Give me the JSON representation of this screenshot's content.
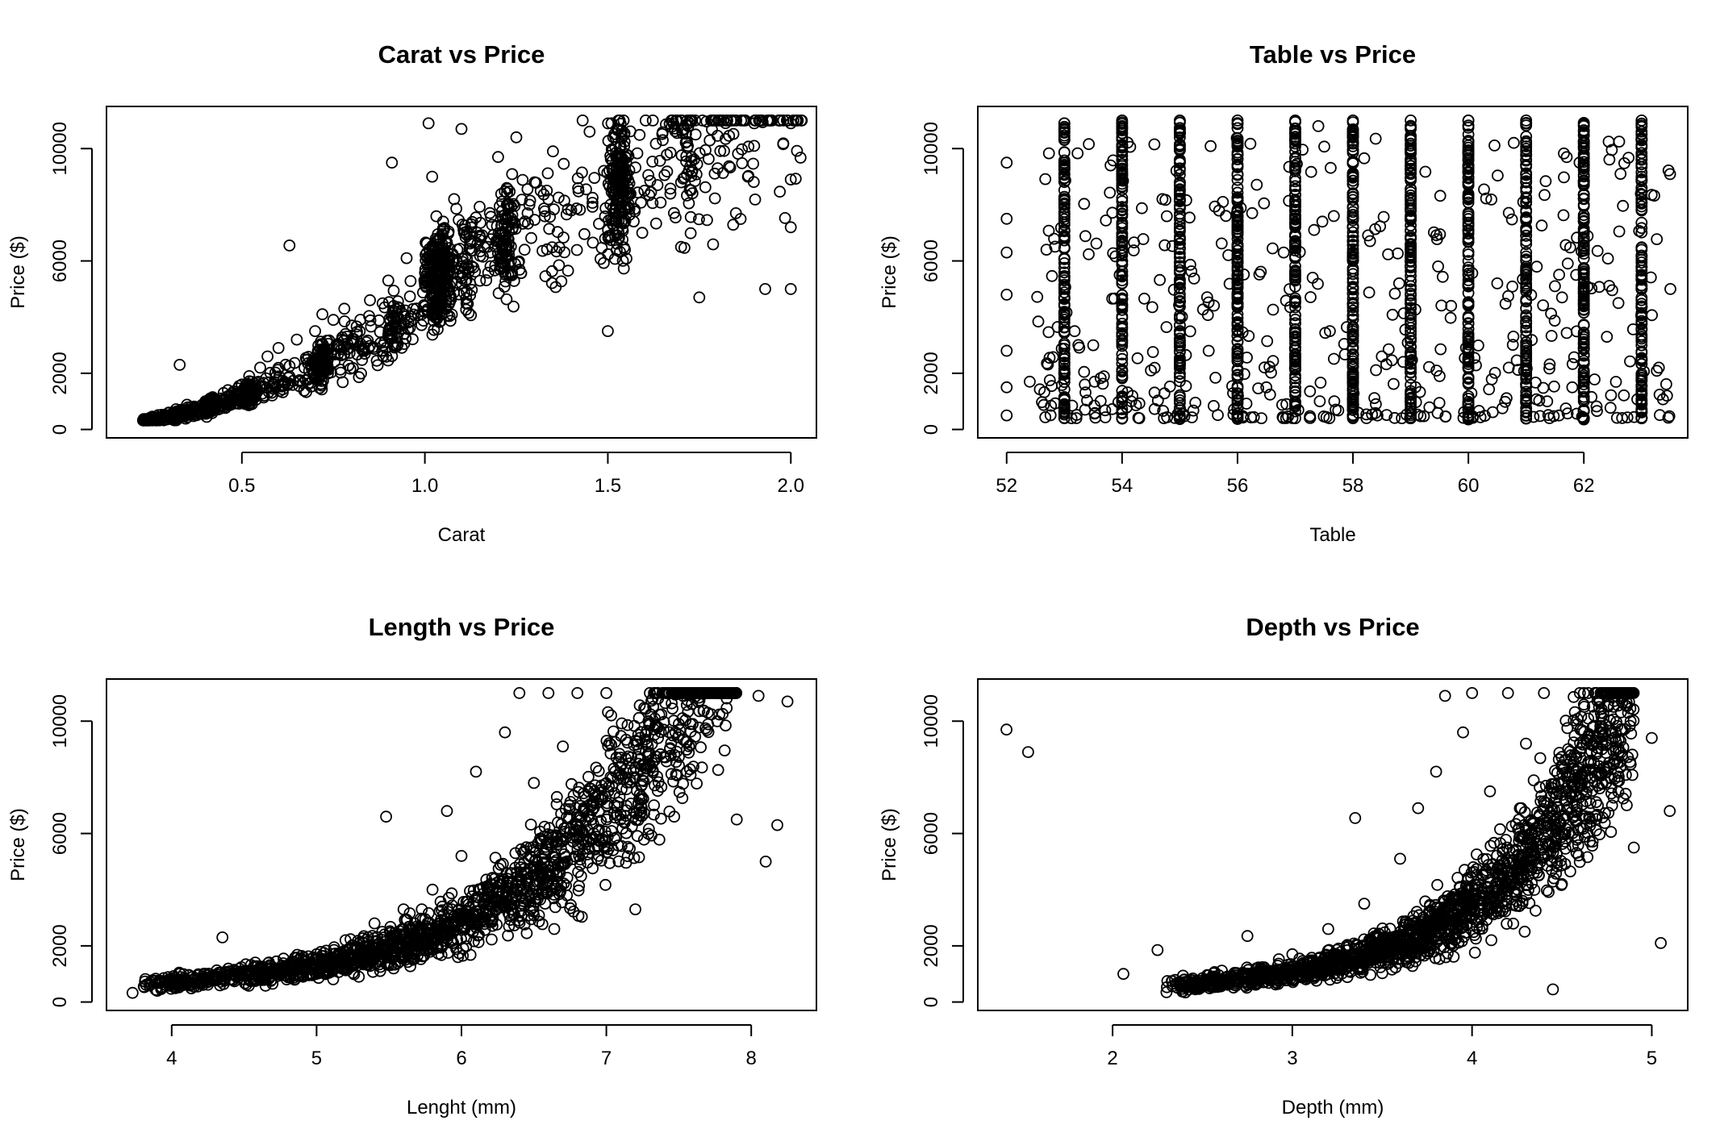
{
  "chart_data": [
    {
      "type": "scatter",
      "title": "Carat vs Price",
      "xlabel": "Carat",
      "ylabel": "Price ($)",
      "xlim": [
        0.13,
        2.07
      ],
      "ylim": [
        -300,
        11500
      ],
      "xticks": [
        0.5,
        1.0,
        1.5,
        2.0
      ],
      "xtick_labels": [
        "0.5",
        "1.0",
        "1.5",
        "2.0"
      ],
      "yticks": [
        0,
        2000,
        6000,
        10000
      ],
      "ytick_labels": [
        "0",
        "2000",
        "6000",
        "10000"
      ],
      "grid": false,
      "legend": "none",
      "points": [
        [
          0.23,
          326
        ],
        [
          0.25,
          420
        ],
        [
          0.28,
          520
        ],
        [
          0.3,
          600
        ],
        [
          0.32,
          720
        ],
        [
          0.33,
          2300
        ],
        [
          0.35,
          880
        ],
        [
          0.4,
          1000
        ],
        [
          0.42,
          1150
        ],
        [
          0.45,
          1300
        ],
        [
          0.5,
          1600
        ],
        [
          0.52,
          1900
        ],
        [
          0.55,
          2200
        ],
        [
          0.57,
          2600
        ],
        [
          0.6,
          2900
        ],
        [
          0.63,
          6550
        ],
        [
          0.65,
          3200
        ],
        [
          0.7,
          3500
        ],
        [
          0.72,
          4100
        ],
        [
          0.75,
          3900
        ],
        [
          0.78,
          4300
        ],
        [
          0.8,
          3700
        ],
        [
          0.85,
          4600
        ],
        [
          0.9,
          5300
        ],
        [
          0.91,
          9500
        ],
        [
          0.95,
          6100
        ],
        [
          1.0,
          5200
        ],
        [
          1.01,
          10900
        ],
        [
          1.02,
          9000
        ],
        [
          1.05,
          7400
        ],
        [
          1.08,
          8200
        ],
        [
          1.1,
          10700
        ],
        [
          1.15,
          6900
        ],
        [
          1.2,
          9700
        ],
        [
          1.25,
          10400
        ],
        [
          1.3,
          8800
        ],
        [
          1.35,
          9900
        ],
        [
          1.4,
          7800
        ],
        [
          1.45,
          10600
        ],
        [
          1.5,
          3500
        ],
        [
          1.51,
          10900
        ],
        [
          1.55,
          9800
        ],
        [
          1.6,
          8500
        ],
        [
          1.65,
          10300
        ],
        [
          1.7,
          6500
        ],
        [
          1.72,
          10800
        ],
        [
          1.75,
          4700
        ],
        [
          1.8,
          9300
        ],
        [
          1.85,
          7700
        ],
        [
          1.9,
          10900
        ],
        [
          1.93,
          5000
        ],
        [
          2.0,
          5000
        ],
        [
          2.0,
          7200
        ],
        [
          2.0,
          8900
        ],
        [
          2.0,
          10900
        ]
      ]
    },
    {
      "type": "scatter",
      "title": "Table vs Price",
      "xlabel": "Table",
      "ylabel": "Price ($)",
      "xlim": [
        51.5,
        63.8
      ],
      "ylim": [
        -300,
        11500
      ],
      "xticks": [
        52,
        54,
        56,
        58,
        60,
        62
      ],
      "xtick_labels": [
        "52",
        "54",
        "56",
        "58",
        "60",
        "62"
      ],
      "yticks": [
        0,
        2000,
        6000,
        10000
      ],
      "ytick_labels": [
        "0",
        "2000",
        "6000",
        "10000"
      ],
      "grid": false,
      "legend": "none",
      "points": [
        [
          52,
          500
        ],
        [
          52,
          1500
        ],
        [
          52,
          2800
        ],
        [
          52,
          4800
        ],
        [
          52,
          6300
        ],
        [
          52,
          7500
        ],
        [
          52,
          9500
        ],
        [
          52.4,
          1700
        ],
        [
          53,
          400
        ],
        [
          53,
          5000
        ],
        [
          53,
          10900
        ],
        [
          53.5,
          3000
        ],
        [
          53.8,
          9400
        ],
        [
          54,
          400
        ],
        [
          54,
          6000
        ],
        [
          54,
          11000
        ],
        [
          54.5,
          2100
        ],
        [
          54.7,
          8200
        ],
        [
          55,
          400
        ],
        [
          55,
          5600
        ],
        [
          55,
          11000
        ],
        [
          55.5,
          2800
        ],
        [
          55.8,
          7600
        ],
        [
          56,
          400
        ],
        [
          56,
          6000
        ],
        [
          56,
          11000
        ],
        [
          56.5,
          1500
        ],
        [
          56.8,
          6300
        ],
        [
          57,
          400
        ],
        [
          57,
          5500
        ],
        [
          57,
          11000
        ],
        [
          57.4,
          10800
        ],
        [
          57.6,
          3500
        ],
        [
          58,
          400
        ],
        [
          58,
          6000
        ],
        [
          58,
          11000
        ],
        [
          58.5,
          2600
        ],
        [
          58.8,
          5200
        ],
        [
          59,
          400
        ],
        [
          59,
          5800
        ],
        [
          59,
          11000
        ],
        [
          59.5,
          1900
        ],
        [
          59.7,
          4400
        ],
        [
          60,
          400
        ],
        [
          60,
          6000
        ],
        [
          60,
          11000
        ],
        [
          60.5,
          5200
        ],
        [
          60.7,
          2200
        ],
        [
          61,
          400
        ],
        [
          61,
          5500
        ],
        [
          61,
          11000
        ],
        [
          61.5,
          5100
        ],
        [
          61.8,
          1500
        ],
        [
          62,
          400
        ],
        [
          62,
          5500
        ],
        [
          62,
          10800
        ],
        [
          62.4,
          3300
        ],
        [
          62.6,
          4500
        ],
        [
          63,
          400
        ],
        [
          63,
          5800
        ],
        [
          63,
          11000
        ],
        [
          63.3,
          2200
        ],
        [
          63.5,
          5000
        ]
      ]
    },
    {
      "type": "scatter",
      "title": "Length vs Price",
      "xlabel": "Lenght (mm)",
      "ylabel": "Price ($)",
      "xlim": [
        3.55,
        8.45
      ],
      "ylim": [
        -300,
        11500
      ],
      "xticks": [
        4,
        5,
        6,
        7,
        8
      ],
      "xtick_labels": [
        "4",
        "5",
        "6",
        "7",
        "8"
      ],
      "yticks": [
        0,
        2000,
        6000,
        10000
      ],
      "ytick_labels": [
        "0",
        "2000",
        "6000",
        "10000"
      ],
      "grid": false,
      "legend": "none",
      "points": [
        [
          3.73,
          326
        ],
        [
          3.9,
          400
        ],
        [
          4.05,
          520
        ],
        [
          4.2,
          650
        ],
        [
          4.35,
          2300
        ],
        [
          4.4,
          800
        ],
        [
          4.6,
          1000
        ],
        [
          4.8,
          1300
        ],
        [
          5.0,
          1700
        ],
        [
          5.2,
          2200
        ],
        [
          5.4,
          2800
        ],
        [
          5.48,
          6600
        ],
        [
          5.6,
          3300
        ],
        [
          5.8,
          4000
        ],
        [
          5.9,
          6800
        ],
        [
          6.0,
          5200
        ],
        [
          6.1,
          8200
        ],
        [
          6.2,
          4200
        ],
        [
          6.3,
          9600
        ],
        [
          6.4,
          11000
        ],
        [
          6.5,
          7800
        ],
        [
          6.6,
          11000
        ],
        [
          6.7,
          9100
        ],
        [
          6.8,
          11000
        ],
        [
          6.9,
          6500
        ],
        [
          7.0,
          11000
        ],
        [
          7.1,
          8700
        ],
        [
          7.2,
          3300
        ],
        [
          7.3,
          11000
        ],
        [
          7.5,
          9900
        ],
        [
          7.7,
          10300
        ],
        [
          7.9,
          6500
        ],
        [
          8.05,
          10900
        ],
        [
          8.1,
          5000
        ],
        [
          8.18,
          6300
        ],
        [
          8.25,
          10700
        ]
      ]
    },
    {
      "type": "scatter",
      "title": "Depth vs Price",
      "xlabel": "Depth (mm)",
      "ylabel": "Price ($)",
      "xlim": [
        1.25,
        5.2
      ],
      "ylim": [
        -300,
        11500
      ],
      "xticks": [
        2,
        3,
        4,
        5
      ],
      "xtick_labels": [
        "2",
        "3",
        "4",
        "5"
      ],
      "yticks": [
        0,
        2000,
        6000,
        10000
      ],
      "ytick_labels": [
        "0",
        "2000",
        "6000",
        "10000"
      ],
      "grid": false,
      "legend": "none",
      "points": [
        [
          1.41,
          9700
        ],
        [
          1.53,
          8900
        ],
        [
          2.06,
          1000
        ],
        [
          2.25,
          1850
        ],
        [
          2.3,
          350
        ],
        [
          2.45,
          500
        ],
        [
          2.6,
          800
        ],
        [
          2.75,
          2350
        ],
        [
          2.8,
          1200
        ],
        [
          3.0,
          1700
        ],
        [
          3.2,
          2600
        ],
        [
          3.35,
          6550
        ],
        [
          3.4,
          3500
        ],
        [
          3.6,
          5100
        ],
        [
          3.7,
          6900
        ],
        [
          3.8,
          8200
        ],
        [
          3.85,
          10900
        ],
        [
          3.95,
          9600
        ],
        [
          4.0,
          11000
        ],
        [
          4.1,
          7500
        ],
        [
          4.2,
          11000
        ],
        [
          4.3,
          9200
        ],
        [
          4.4,
          11000
        ],
        [
          4.45,
          450
        ],
        [
          4.5,
          4200
        ],
        [
          4.6,
          11000
        ],
        [
          4.7,
          7000
        ],
        [
          4.8,
          10900
        ],
        [
          4.9,
          5500
        ],
        [
          5.0,
          9400
        ],
        [
          5.05,
          2100
        ],
        [
          5.1,
          6800
        ]
      ]
    }
  ]
}
